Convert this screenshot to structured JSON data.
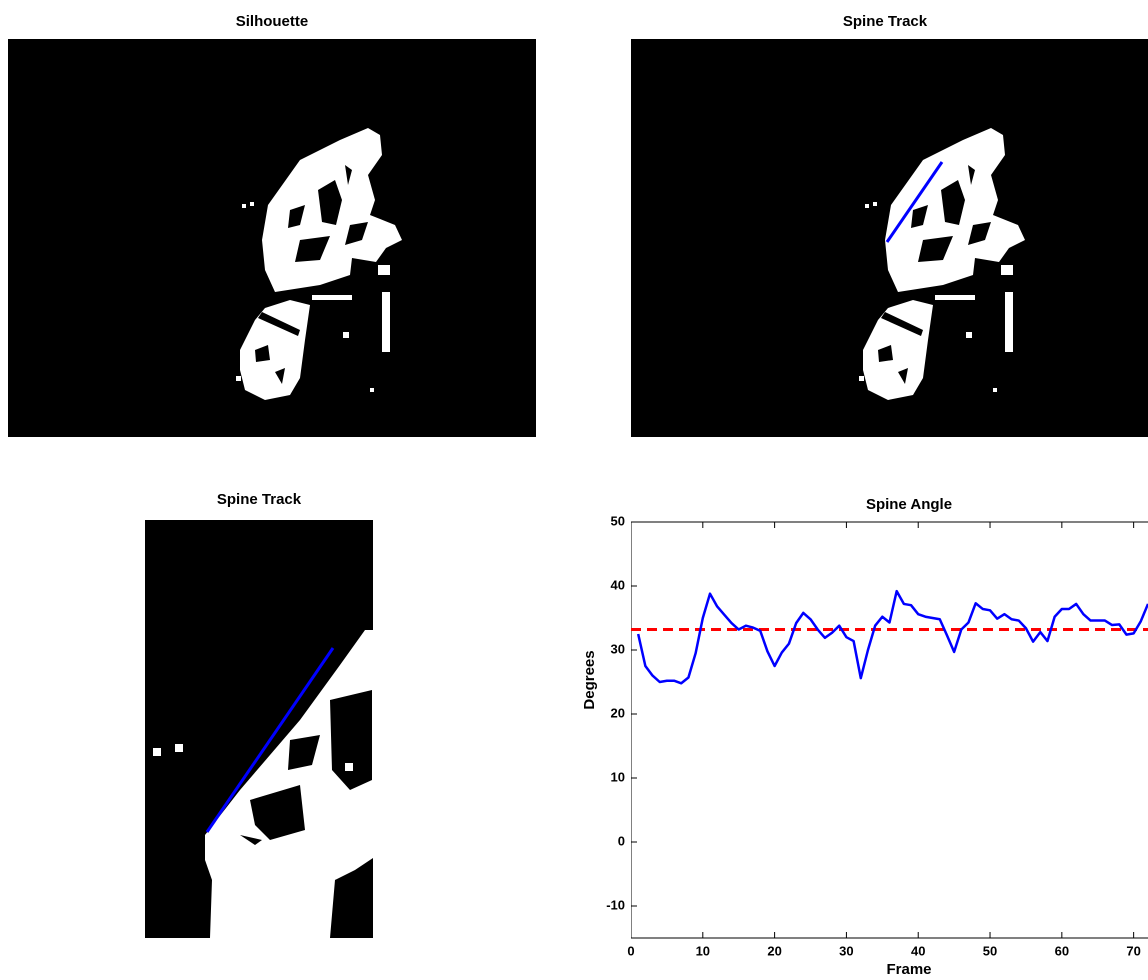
{
  "chart_data": [
    {
      "type": "image",
      "title": "Silhouette"
    },
    {
      "type": "image",
      "title": "Spine Track"
    },
    {
      "type": "image",
      "title": "Spine Track"
    },
    {
      "type": "line",
      "title": "Spine Angle",
      "x_label": "Frame",
      "y_label": "Degrees",
      "x": [
        1,
        2,
        3,
        4,
        5,
        6,
        7,
        8,
        9,
        10,
        11,
        12,
        13,
        14,
        15,
        16,
        17,
        18,
        19,
        20,
        21,
        22,
        23,
        24,
        25,
        26,
        27,
        28,
        29,
        30,
        31,
        32,
        33,
        34,
        35,
        36,
        37,
        38,
        39,
        40,
        41,
        42,
        43,
        44,
        45,
        46,
        47,
        48,
        49,
        50,
        51,
        52,
        53,
        54,
        55,
        56,
        57,
        58,
        59,
        60,
        61,
        62,
        63,
        64,
        65,
        66,
        67,
        68,
        69,
        70,
        71,
        72
      ],
      "series": [
        {
          "color": "#0000ff",
          "values": [
            32.5,
            27.5,
            26,
            25,
            25.2,
            25.2,
            24.8,
            25.7,
            29.5,
            35,
            38.8,
            36.8,
            35.5,
            34.2,
            33.2,
            33.8,
            33.5,
            33,
            29.8,
            27.5,
            29.6,
            31,
            34.2,
            35.8,
            34.8,
            33.2,
            31.9,
            32.7,
            33.8,
            32,
            31.4,
            25.6,
            30,
            33.8,
            35.2,
            34.3,
            39.2,
            37.2,
            37,
            35.6,
            35.2,
            35,
            34.8,
            32.3,
            29.7,
            33.2,
            34.3,
            37.3,
            36.4,
            36.2,
            34.9,
            35.6,
            34.8,
            34.6,
            33.4,
            31.3,
            32.8,
            31.4,
            35.2,
            36.4,
            36.4,
            37.2,
            35.6,
            34.6,
            34.6,
            34.6,
            33.9,
            34,
            32.4,
            32.6,
            34.5,
            37.2
          ]
        }
      ],
      "reference_line": {
        "value": 33.2,
        "color": "#ff0000"
      },
      "xlim": [
        0,
        72
      ],
      "ylim": [
        -15,
        50
      ],
      "xticks": [
        0,
        10,
        20,
        30,
        40,
        50,
        60,
        70
      ],
      "yticks": [
        -10,
        0,
        10,
        20,
        30,
        40,
        50
      ]
    }
  ]
}
